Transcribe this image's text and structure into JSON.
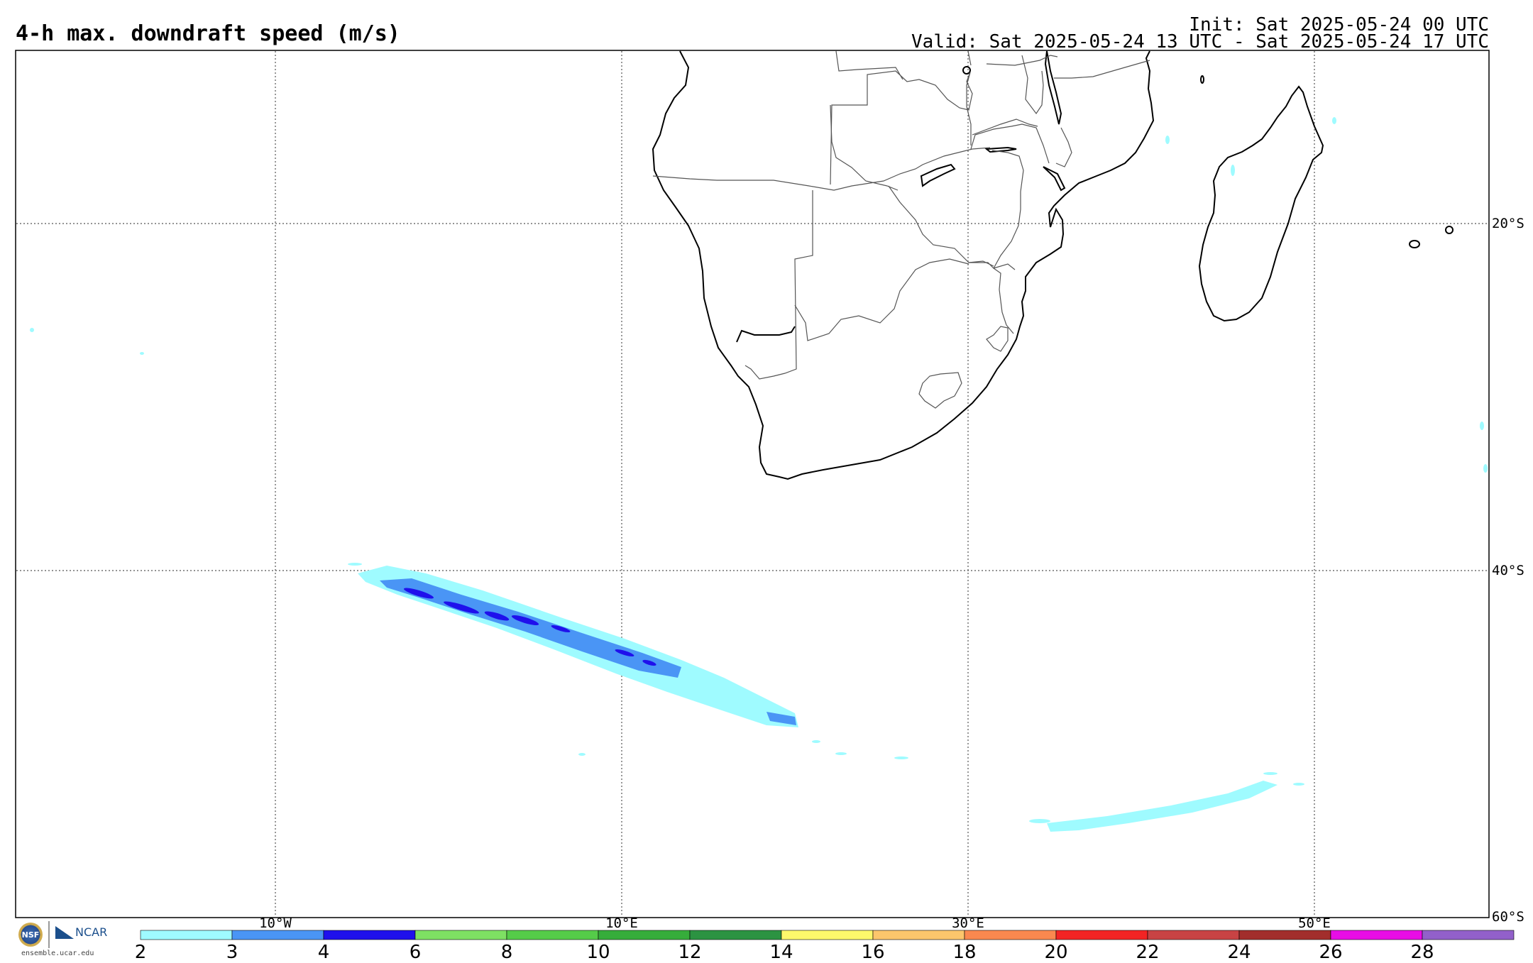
{
  "header": {
    "title": "4-h max. downdraft speed (m/s)",
    "init": "Init: Sat 2025-05-24 00 UTC",
    "valid": "Valid: Sat 2025-05-24 13 UTC - Sat 2025-05-24 17 UTC"
  },
  "map": {
    "lon_labels": [
      "10°W",
      "10°E",
      "30°E",
      "50°E"
    ],
    "lat_labels": [
      "20°S",
      "40°S",
      "60°S"
    ],
    "gridlines": "dotted"
  },
  "colorbar": {
    "labels": [
      "2",
      "3",
      "4",
      "6",
      "8",
      "10",
      "12",
      "14",
      "16",
      "18",
      "20",
      "22",
      "24",
      "26",
      "28"
    ],
    "colors": [
      "#9ffbff",
      "#4a95f5",
      "#1f10ec",
      "#7ee163",
      "#55cc49",
      "#36ad3b",
      "#2c9342",
      "#fdf86b",
      "#fcc66c",
      "#fa884f",
      "#f32424",
      "#c84344",
      "#a22e2c",
      "#e80de6",
      "#9260ca"
    ]
  },
  "logo": {
    "nsf": "NSF",
    "ncar": "NCAR",
    "url": "ensemble.ucar.edu"
  }
}
